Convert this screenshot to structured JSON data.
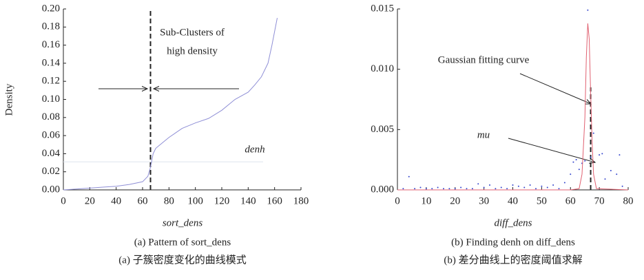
{
  "chart_data": [
    {
      "type": "line",
      "y_label": "Density",
      "x_label": "sort_dens",
      "caption_en": "(a) Pattern of sort_dens",
      "caption_zh": "(a)  子簇密度变化的曲线模式",
      "annotation_1": "Sub-Clusters of",
      "annotation_2": "high density",
      "threshold_label": "denh",
      "x": [
        0,
        10,
        20,
        30,
        40,
        50,
        60,
        64,
        66,
        68,
        70,
        75,
        80,
        90,
        100,
        110,
        120,
        130,
        140,
        145,
        150,
        155,
        158,
        160,
        162
      ],
      "series": [
        {
          "color": "#8f8fd6",
          "values": [
            0,
            0.001,
            0.002,
            0.003,
            0.004,
            0.006,
            0.009,
            0.015,
            0.025,
            0.04,
            0.046,
            0.052,
            0.058,
            0.068,
            0.074,
            0.079,
            0.088,
            0.1,
            0.108,
            0.116,
            0.125,
            0.14,
            0.16,
            0.175,
            0.19
          ]
        }
      ],
      "split_x": 66,
      "threshold": 0.031,
      "xlim": [
        0,
        180
      ],
      "xticks": [
        0,
        20,
        40,
        60,
        80,
        100,
        120,
        140,
        160,
        180
      ],
      "ylim": [
        0,
        0.2
      ],
      "yticks": [
        {
          "value": 0,
          "label": "0.00"
        },
        {
          "value": 0.02,
          "label": "0.02"
        },
        {
          "value": 0.04,
          "label": "0.04"
        },
        {
          "value": 0.06,
          "label": "0.06"
        },
        {
          "value": 0.08,
          "label": "0.08"
        },
        {
          "value": 0.1,
          "label": "0.10"
        },
        {
          "value": 0.12,
          "label": "0.12"
        },
        {
          "value": 0.14,
          "label": "0.14"
        },
        {
          "value": 0.16,
          "label": "0.16"
        },
        {
          "value": 0.18,
          "label": "0.18"
        },
        {
          "value": 0.2,
          "label": "0.20"
        }
      ]
    },
    {
      "type": "scatter",
      "x_label": "diff_dens",
      "caption_en": "(b) Finding denh on diff_dens",
      "caption_zh": "(b)  差分曲线上的密度阈值求解",
      "annotation_1": "Gaussian fitting curve",
      "annotation_2": "mu",
      "series": [
        {
          "type": "scatter",
          "color": "#3344cc",
          "x": [
            2,
            4,
            6,
            8,
            10,
            12,
            14,
            16,
            18,
            20,
            22,
            24,
            26,
            28,
            30,
            32,
            34,
            36,
            38,
            40,
            42,
            44,
            46,
            48,
            50,
            52,
            54,
            56,
            58,
            60,
            61,
            62,
            63,
            64,
            65,
            66,
            67,
            68,
            70,
            71,
            72,
            74,
            76,
            77,
            78
          ],
          "values": [
            0.0001,
            0.0011,
            0.0001,
            0.0002,
            0.0001,
            0.0001,
            0.0002,
            0.0001,
            0.0001,
            0.0001,
            0.0002,
            0.0001,
            0.0001,
            0.0005,
            0.0002,
            0.0004,
            0.0001,
            0.0002,
            0.0001,
            0.0004,
            0.0003,
            0.0002,
            0.0004,
            0.0001,
            0.0003,
            0.0002,
            0.0004,
            0.0001,
            0.0006,
            0.0013,
            0.0023,
            0.0025,
            0.0017,
            0.0022,
            0.0024,
            0.0149,
            0.0027,
            0.0047,
            0.0029,
            0.003,
            0.0009,
            0.0016,
            0.0013,
            0.0029,
            0.0003
          ]
        },
        {
          "type": "line",
          "color": "#e06070",
          "x": [
            0,
            60,
            63,
            64,
            65,
            65.5,
            66,
            66.5,
            67,
            67.5,
            68,
            69,
            80
          ],
          "values": [
            0,
            0,
            0.0001,
            0.0013,
            0.006,
            0.011,
            0.0138,
            0.0125,
            0.008,
            0.004,
            0.0013,
            0.0001,
            0
          ]
        }
      ],
      "split_x": 67,
      "split_top": 0.0085,
      "xlim": [
        0,
        80
      ],
      "xticks": [
        0,
        10,
        20,
        30,
        40,
        50,
        60,
        70,
        80
      ],
      "ylim": [
        0,
        0.015
      ],
      "yticks": [
        {
          "value": 0,
          "label": "0.000"
        },
        {
          "value": 0.005,
          "label": "0.005"
        },
        {
          "value": 0.01,
          "label": "0.010"
        },
        {
          "value": 0.015,
          "label": "0.015"
        }
      ]
    }
  ]
}
